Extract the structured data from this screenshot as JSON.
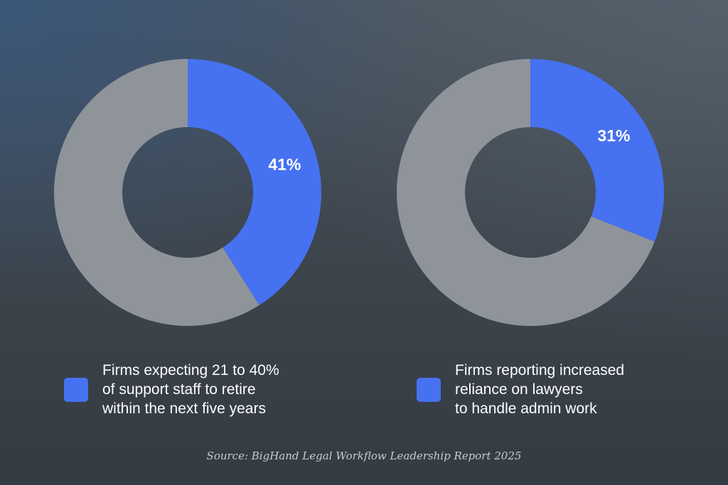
{
  "colors": {
    "highlight": "#4671f0",
    "remainder": "#8f949b",
    "label_text": "#ffffff"
  },
  "chart_data": [
    {
      "type": "pie",
      "style": "donut",
      "categories": [
        "Firms expecting 21 to 40% of support staff to retire within the next five years",
        ""
      ],
      "values": [
        41,
        59
      ],
      "value_labels": [
        "41%",
        ""
      ],
      "legend": {
        "placement": "bottom",
        "lines": [
          "Firms expecting 21 to 40%",
          "of support staff to retire",
          "within the next five years"
        ]
      }
    },
    {
      "type": "pie",
      "style": "donut",
      "categories": [
        "Firms reporting increased reliance on lawyers to handle admin work",
        ""
      ],
      "values": [
        31,
        69
      ],
      "value_labels": [
        "31%",
        ""
      ],
      "legend": {
        "placement": "bottom",
        "lines": [
          "Firms reporting increased",
          "reliance on lawyers",
          "to handle admin work"
        ]
      }
    }
  ],
  "source": "Source: BigHand Legal Workflow Leadership Report 2025"
}
